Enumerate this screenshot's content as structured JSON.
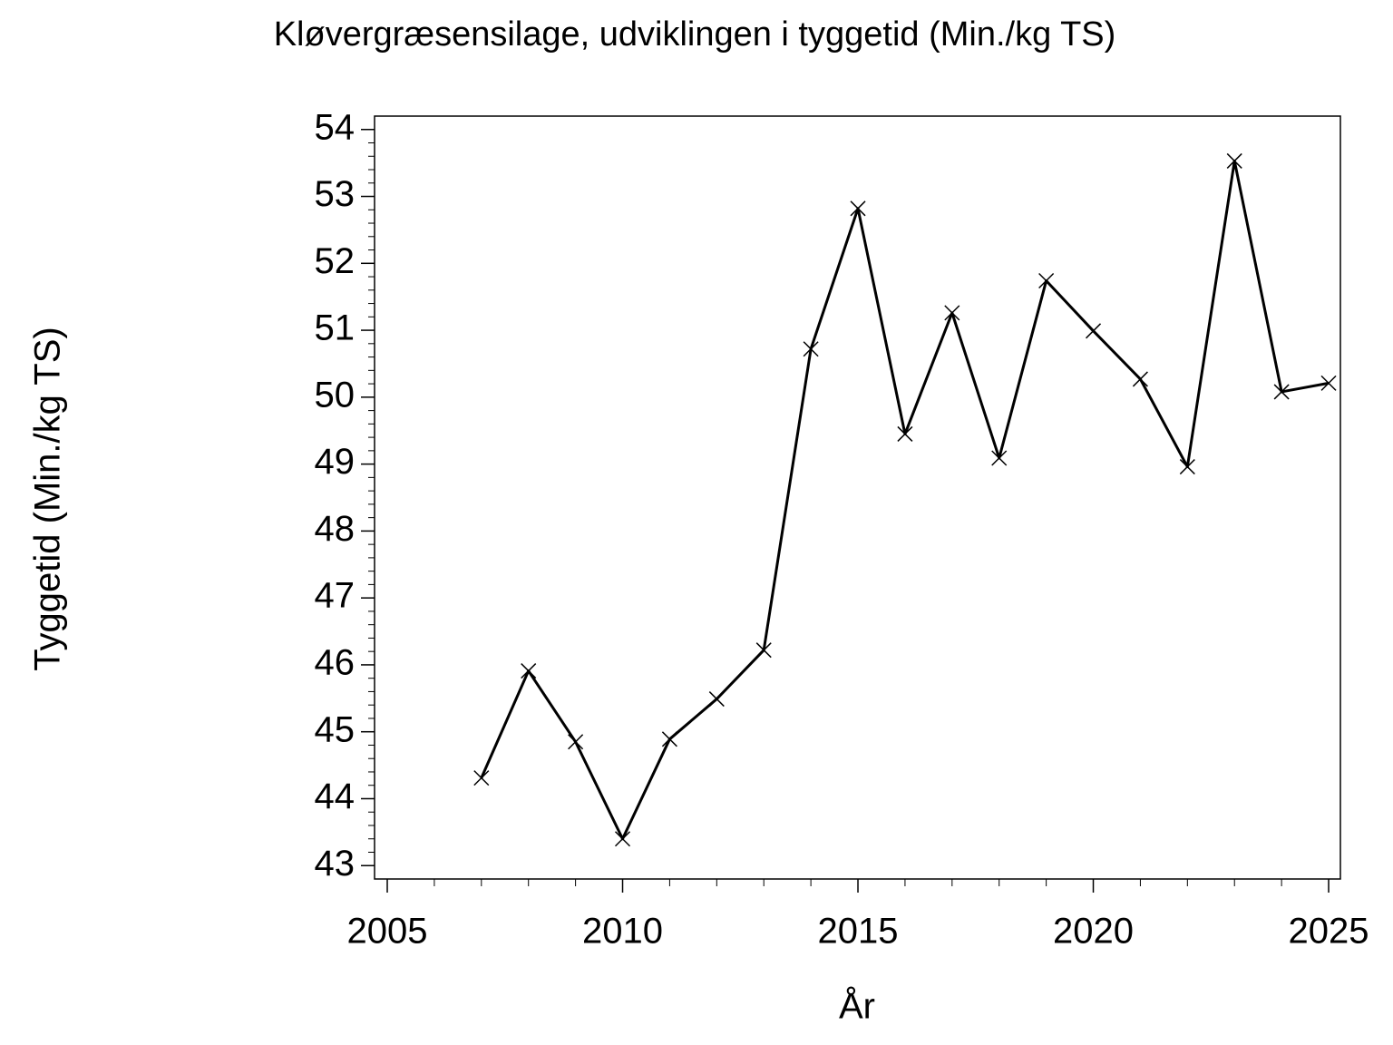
{
  "chart_data": {
    "type": "line",
    "title": "Kløvergræsensilage,  udviklingen  i  tyggetid  (Min./kg  TS)",
    "x_label": "År",
    "y_label": "Tyggetid  (Min./kg  TS)",
    "x": [
      2007,
      2008,
      2009,
      2010,
      2011,
      2012,
      2013,
      2014,
      2015,
      2016,
      2017,
      2018,
      2019,
      2020,
      2021,
      2022,
      2023,
      2024,
      2025
    ],
    "series": [
      {
        "color": "#000000",
        "values": [
          44.31,
          45.91,
          44.85,
          43.4,
          44.89,
          45.49,
          46.22,
          50.72,
          52.82,
          49.45,
          51.26,
          49.09,
          51.74,
          50.99,
          50.27,
          48.96,
          53.53,
          50.08,
          50.21
        ]
      }
    ],
    "xlim": [
      2004.73,
      2025.25
    ],
    "ylim": [
      42.8,
      54.2
    ],
    "xticks": [
      2005,
      2010,
      2015,
      2020,
      2025
    ],
    "yticks": [
      43,
      44,
      45,
      46,
      47,
      48,
      49,
      50,
      51,
      52,
      53,
      54
    ],
    "grid": false
  }
}
